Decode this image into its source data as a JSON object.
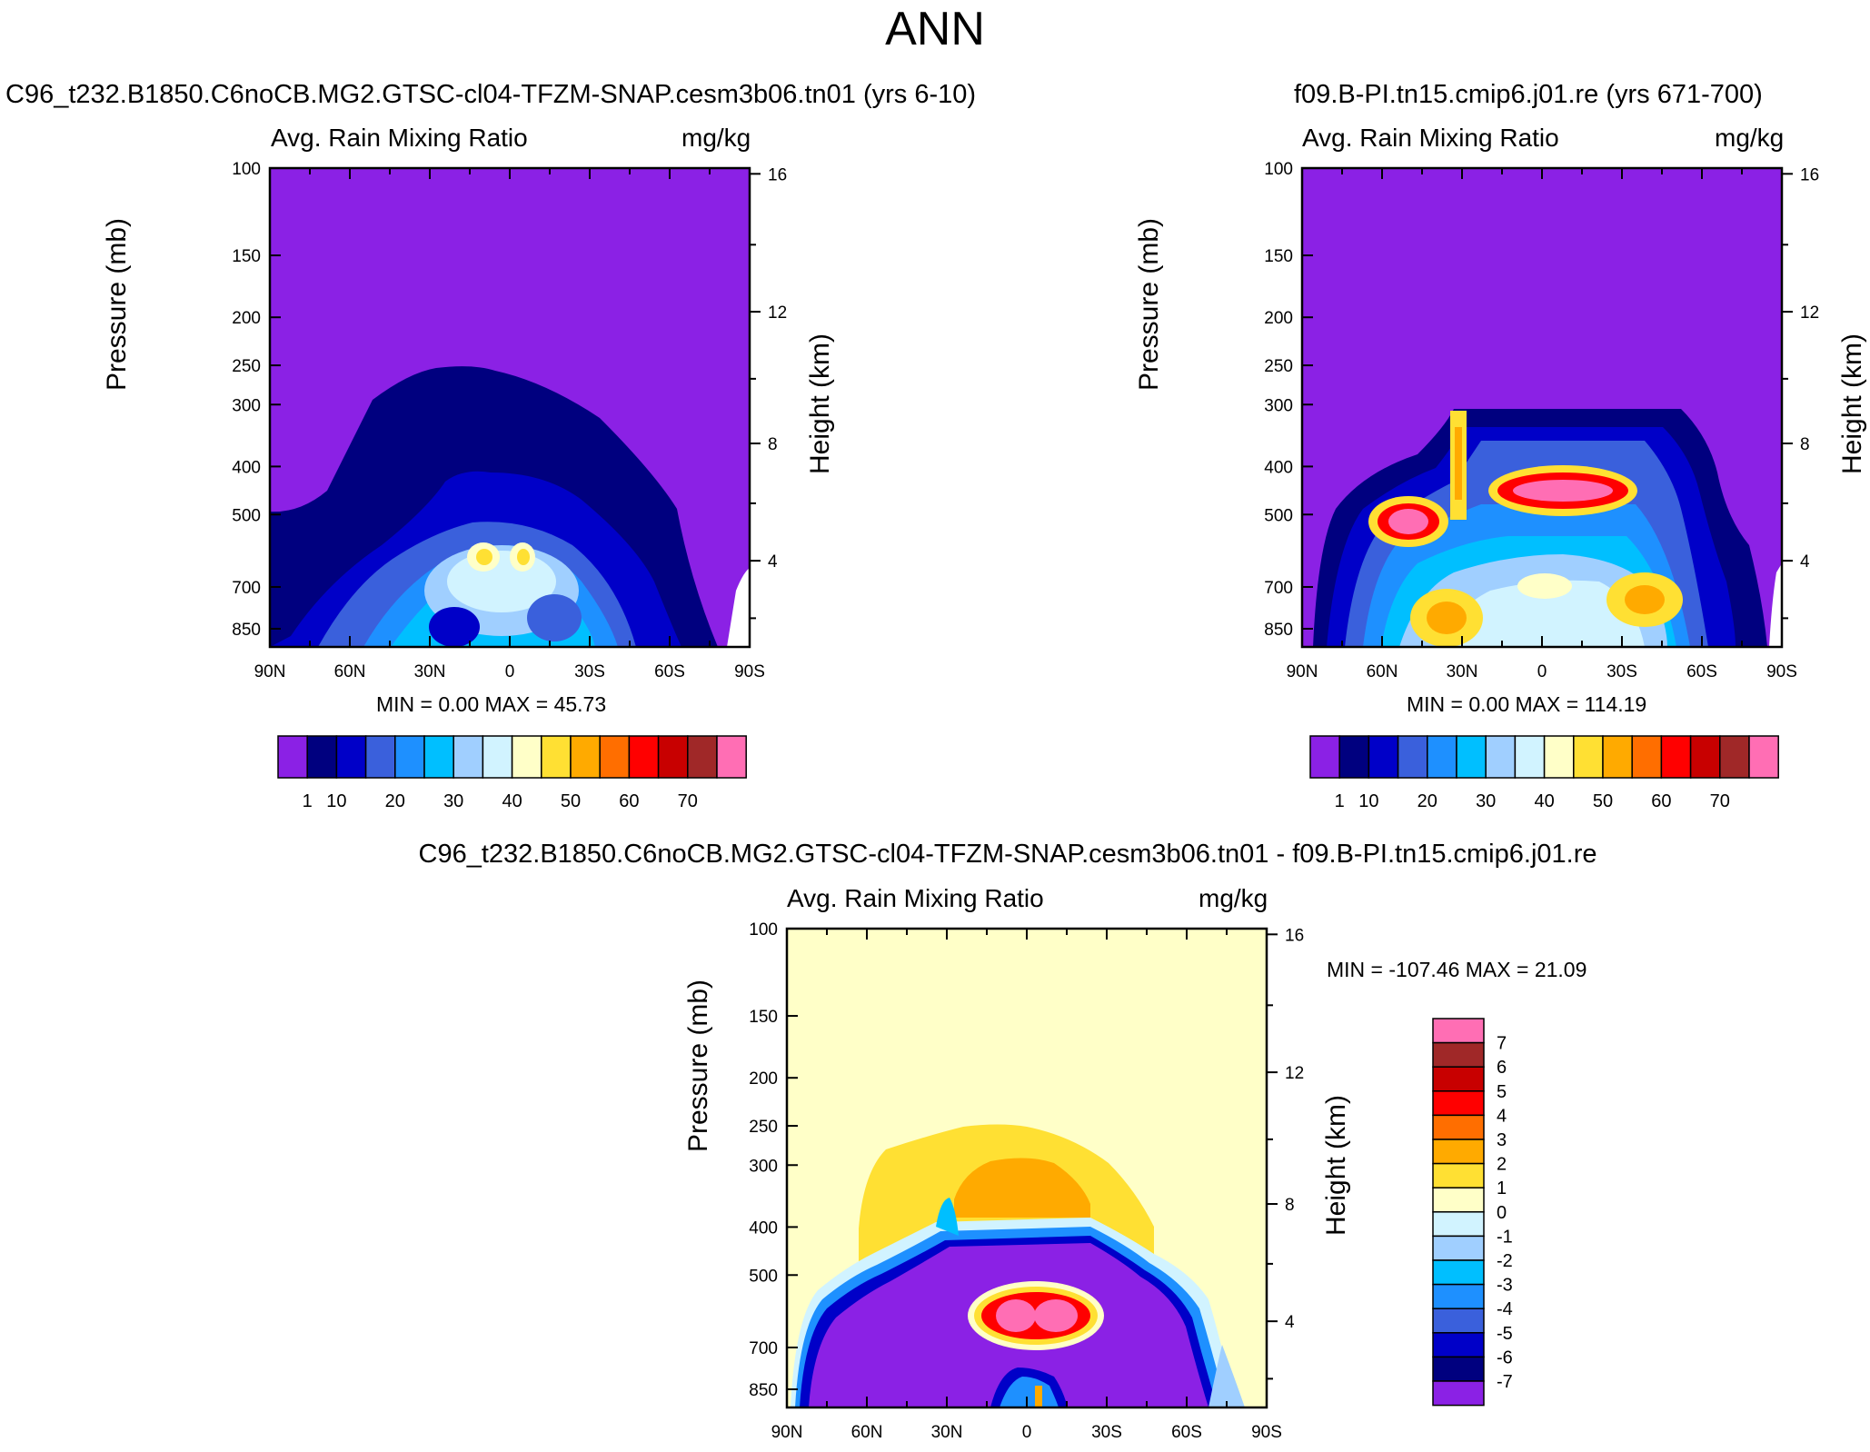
{
  "figure": {
    "title": "ANN",
    "field_label": "Avg. Rain Mixing Ratio",
    "units": "mg/kg"
  },
  "colors": {
    "levels_abs": [
      "#8B21E5",
      "#00007F",
      "#0000C8",
      "#3A60DC",
      "#1E90FF",
      "#00BFFF",
      "#A0CFFF",
      "#D1F3FF",
      "#FFFFC8",
      "#FFE033",
      "#FFAA00",
      "#FF6E00",
      "#FF0000",
      "#C80000",
      "#A02828",
      "#FF6EB4"
    ],
    "levels_diff": [
      "#8B21E5",
      "#00007F",
      "#0000C8",
      "#3A60DC",
      "#1E90FF",
      "#00BFFF",
      "#A0CFFF",
      "#D1F3FF",
      "#FFFFC8",
      "#FFE033",
      "#FFAA00",
      "#FF6E00",
      "#FF0000",
      "#C80000",
      "#A02828",
      "#FF6EB4"
    ]
  },
  "chart_data": [
    {
      "type": "heatmap",
      "title": "C96_t232.B1850.C6noCB.MG2.GTSC-cl04-TFZM-SNAP.cesm3b06.tn01 (yrs 6-10)",
      "subtitle_left": "Avg. Rain Mixing Ratio",
      "subtitle_right": "mg/kg",
      "xlabel": "",
      "ylabel": "Pressure (mb)",
      "ylabel_right": "Height (km)",
      "x_ticks": [
        "90N",
        "60N",
        "30N",
        "0",
        "30S",
        "60S",
        "90S"
      ],
      "y_ticks": [
        "100",
        "150",
        "200",
        "250",
        "300",
        "400",
        "500",
        "700",
        "850"
      ],
      "y_ticks_right": [
        "16",
        "12",
        "8",
        "4"
      ],
      "min_max": "MIN =   0.00  MAX =  45.73",
      "colorbar_labels": [
        "1",
        "10",
        "20",
        "30",
        "40",
        "50",
        "60",
        "70"
      ]
    },
    {
      "type": "heatmap",
      "title": "f09.B-PI.tn15.cmip6.j01.re (yrs 671-700)",
      "subtitle_left": "Avg. Rain Mixing Ratio",
      "subtitle_right": "mg/kg",
      "xlabel": "",
      "ylabel": "Pressure (mb)",
      "ylabel_right": "Height (km)",
      "x_ticks": [
        "90N",
        "60N",
        "30N",
        "0",
        "30S",
        "60S",
        "90S"
      ],
      "y_ticks": [
        "100",
        "150",
        "200",
        "250",
        "300",
        "400",
        "500",
        "700",
        "850"
      ],
      "y_ticks_right": [
        "16",
        "12",
        "8",
        "4"
      ],
      "min_max": "MIN =   0.00  MAX = 114.19",
      "colorbar_labels": [
        "1",
        "10",
        "20",
        "30",
        "40",
        "50",
        "60",
        "70"
      ]
    },
    {
      "type": "heatmap",
      "title": "C96_t232.B1850.C6noCB.MG2.GTSC-cl04-TFZM-SNAP.cesm3b06.tn01 - f09.B-PI.tn15.cmip6.j01.re",
      "subtitle_left": "Avg. Rain Mixing Ratio",
      "subtitle_right": "mg/kg",
      "xlabel": "",
      "ylabel": "Pressure (mb)",
      "ylabel_right": "Height (km)",
      "x_ticks": [
        "90N",
        "60N",
        "30N",
        "0",
        "30S",
        "60S",
        "90S"
      ],
      "y_ticks": [
        "100",
        "150",
        "200",
        "250",
        "300",
        "400",
        "500",
        "700",
        "850"
      ],
      "y_ticks_right": [
        "16",
        "12",
        "8",
        "4"
      ],
      "min_max": "MIN = -107.46  MAX =  21.09",
      "colorbar_labels": [
        "7",
        "6",
        "5",
        "4",
        "3",
        "2",
        "1",
        "0",
        "-1",
        "-2",
        "-3",
        "-4",
        "-5",
        "-6",
        "-7"
      ]
    }
  ]
}
